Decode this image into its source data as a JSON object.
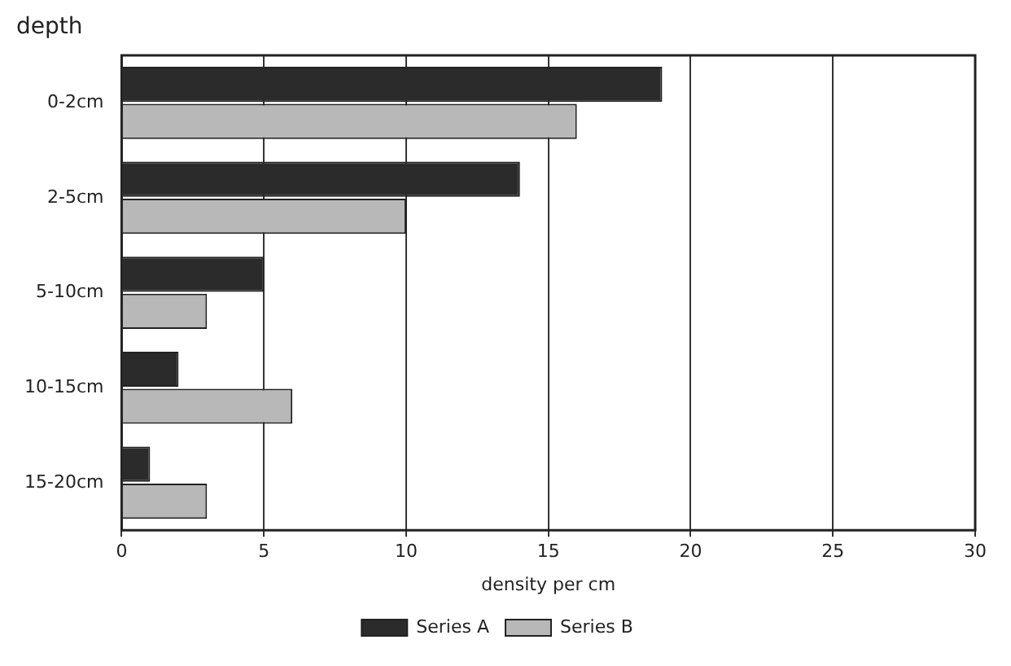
{
  "chart_data": {
    "type": "bar",
    "orientation": "horizontal",
    "ylabel": "depth",
    "xlabel": "density per cm",
    "categories": [
      "0-2cm",
      "2-5cm",
      "5-10cm",
      "10-15cm",
      "15-20cm"
    ],
    "series": [
      {
        "name": "Series A",
        "color": "#2b2b2b",
        "values": [
          19,
          14,
          5,
          2,
          1
        ]
      },
      {
        "name": "Series B",
        "color": "#b8b8b8",
        "values": [
          16,
          10,
          3,
          6,
          3
        ]
      }
    ],
    "xlim": [
      0,
      30
    ],
    "xticks": [
      0,
      5,
      10,
      15,
      20,
      25,
      30
    ],
    "grid": "x",
    "legend": "bottom"
  }
}
